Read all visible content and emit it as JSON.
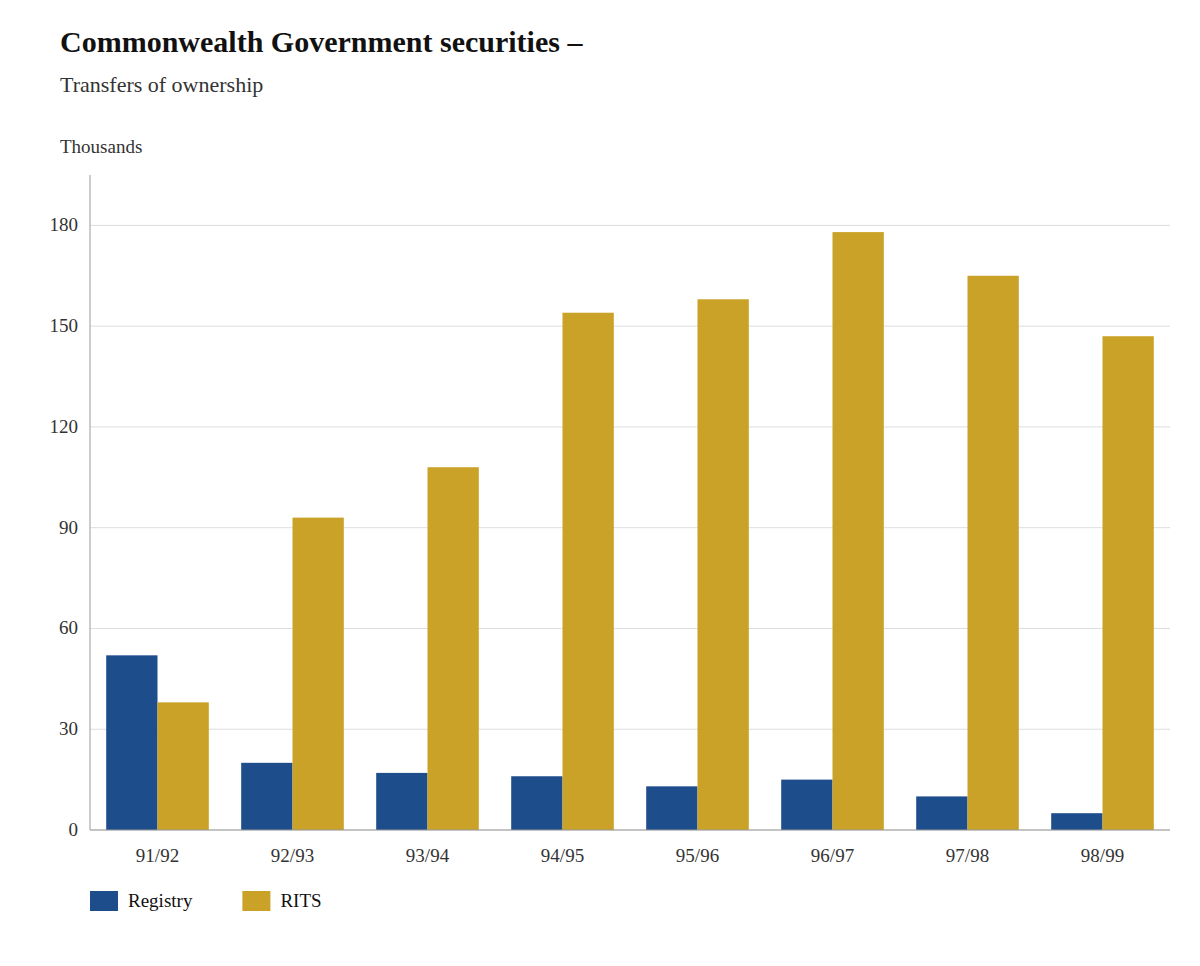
{
  "chart_data": {
    "type": "bar",
    "title": "Commonwealth Government securities –",
    "subtitle": "Transfers of ownership",
    "ylabel": "Thousands",
    "categories": [
      "91/92",
      "92/93",
      "93/94",
      "94/95",
      "95/96",
      "96/97",
      "97/98",
      "98/99"
    ],
    "series": [
      {
        "name": "Registry",
        "color": "#1e4d8c",
        "values": [
          52,
          20,
          17,
          16,
          13,
          15,
          10,
          5
        ]
      },
      {
        "name": "RITS",
        "color": "#c9a227",
        "values": [
          38,
          93,
          108,
          154,
          158,
          178,
          165,
          147
        ]
      }
    ],
    "ylim": [
      0,
      195
    ],
    "yticks": [
      0,
      30,
      60,
      90,
      120,
      150,
      180
    ],
    "grid": true,
    "legend": "bottom"
  }
}
